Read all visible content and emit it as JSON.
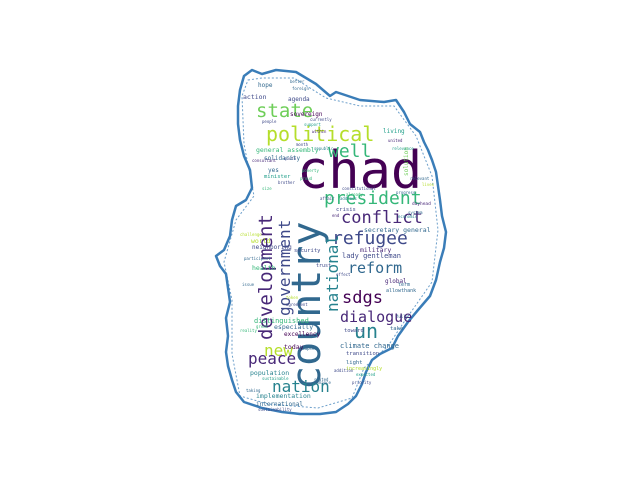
{
  "theme": {
    "background": "#ffffff",
    "outline_color": "#3a7db8",
    "palette": [
      "#440154",
      "#482878",
      "#3e4989",
      "#31688e",
      "#26828e",
      "#1f9e89",
      "#35b779",
      "#6ece58",
      "#b5de2b",
      "#fde725"
    ]
  },
  "wordcloud": {
    "shape": "country-silhouette",
    "words": [
      {
        "text": "chad",
        "weight": 1.0,
        "color": "#440154",
        "orient": "h"
      },
      {
        "text": "country",
        "weight": 0.78,
        "color": "#31688e",
        "orient": "v"
      },
      {
        "text": "political",
        "weight": 0.38,
        "color": "#b5de2b",
        "orient": "h"
      },
      {
        "text": "state",
        "weight": 0.34,
        "color": "#6ece58",
        "orient": "h"
      },
      {
        "text": "president",
        "weight": 0.3,
        "color": "#35b779",
        "orient": "h"
      },
      {
        "text": "well",
        "weight": 0.3,
        "color": "#35b779",
        "orient": "h"
      },
      {
        "text": "refugee",
        "weight": 0.3,
        "color": "#3e4989",
        "orient": "h"
      },
      {
        "text": "conflict",
        "weight": 0.28,
        "color": "#482878",
        "orient": "h"
      },
      {
        "text": "development",
        "weight": 0.3,
        "color": "#482878",
        "orient": "v"
      },
      {
        "text": "government",
        "weight": 0.26,
        "color": "#3e4989",
        "orient": "v"
      },
      {
        "text": "national",
        "weight": 0.26,
        "color": "#26828e",
        "orient": "v"
      },
      {
        "text": "sdgs",
        "weight": 0.26,
        "color": "#440154",
        "orient": "h"
      },
      {
        "text": "reform",
        "weight": 0.24,
        "color": "#31688e",
        "orient": "h"
      },
      {
        "text": "dialogue",
        "weight": 0.24,
        "color": "#482878",
        "orient": "h"
      },
      {
        "text": "un",
        "weight": 0.32,
        "color": "#26828e",
        "orient": "h"
      },
      {
        "text": "new",
        "weight": 0.28,
        "color": "#b5de2b",
        "orient": "h"
      },
      {
        "text": "peace",
        "weight": 0.28,
        "color": "#482878",
        "orient": "h"
      },
      {
        "text": "nation",
        "weight": 0.28,
        "color": "#26828e",
        "orient": "h"
      },
      {
        "text": "general assembly",
        "weight": 0.1,
        "color": "#35b779",
        "orient": "h"
      },
      {
        "text": "solidarity",
        "weight": 0.09,
        "color": "#31688e",
        "orient": "h"
      },
      {
        "text": "lady gentleman",
        "weight": 0.1,
        "color": "#3e4989",
        "orient": "h"
      },
      {
        "text": "secretary general",
        "weight": 0.1,
        "color": "#31688e",
        "orient": "h"
      },
      {
        "text": "military",
        "weight": 0.1,
        "color": "#482878",
        "orient": "h"
      },
      {
        "text": "climate change",
        "weight": 0.1,
        "color": "#31688e",
        "orient": "h"
      },
      {
        "text": "distinguished",
        "weight": 0.1,
        "color": "#35b779",
        "orient": "h"
      },
      {
        "text": "especially",
        "weight": 0.09,
        "color": "#31688e",
        "orient": "h"
      },
      {
        "text": "excellency",
        "weight": 0.09,
        "color": "#440154",
        "orient": "h"
      },
      {
        "text": "population",
        "weight": 0.1,
        "color": "#26828e",
        "orient": "h"
      },
      {
        "text": "implementation",
        "weight": 0.1,
        "color": "#26828e",
        "orient": "h"
      },
      {
        "text": "international",
        "weight": 0.09,
        "color": "#31688e",
        "orient": "h"
      },
      {
        "text": "sovereign",
        "weight": 0.09,
        "color": "#440154",
        "orient": "h"
      },
      {
        "text": "agenda",
        "weight": 0.08,
        "color": "#3e4989",
        "orient": "h"
      },
      {
        "text": "action",
        "weight": 0.09,
        "color": "#3e4989",
        "orient": "h"
      },
      {
        "text": "hope",
        "weight": 0.08,
        "color": "#31688e",
        "orient": "h"
      },
      {
        "text": "living",
        "weight": 0.09,
        "color": "#1f9e89",
        "orient": "h"
      },
      {
        "text": "world",
        "weight": 0.09,
        "color": "#b5de2b",
        "orient": "h"
      },
      {
        "text": "health",
        "weight": 0.09,
        "color": "#35b779",
        "orient": "h"
      },
      {
        "text": "neighboring",
        "weight": 0.09,
        "color": "#3e4989",
        "orient": "h"
      },
      {
        "text": "today",
        "weight": 0.1,
        "color": "#440154",
        "orient": "h"
      },
      {
        "text": "toward",
        "weight": 0.08,
        "color": "#3e4989",
        "orient": "h"
      },
      {
        "text": "global",
        "weight": 0.09,
        "color": "#482878",
        "orient": "h"
      },
      {
        "text": "transition",
        "weight": 0.08,
        "color": "#3e4989",
        "orient": "h"
      },
      {
        "text": "light",
        "weight": 0.08,
        "color": "#31688e",
        "orient": "h"
      },
      {
        "text": "crisis",
        "weight": 0.08,
        "color": "#3e4989",
        "orient": "h"
      },
      {
        "text": "security",
        "weight": 0.08,
        "color": "#3e4989",
        "orient": "h"
      },
      {
        "text": "solution",
        "weight": 0.08,
        "color": "#6ece58",
        "orient": "v"
      },
      {
        "text": "yes",
        "weight": 0.08,
        "color": "#31688e",
        "orient": "h"
      },
      {
        "text": "minister",
        "weight": 0.08,
        "color": "#1f9e89",
        "orient": "h"
      },
      {
        "text": "take",
        "weight": 0.07,
        "color": "#31688e",
        "orient": "h"
      },
      {
        "text": "term",
        "weight": 0.07,
        "color": "#31688e",
        "orient": "h"
      },
      {
        "text": "trust",
        "weight": 0.07,
        "color": "#3e4989",
        "orient": "h"
      },
      {
        "text": "allowthank",
        "weight": 0.07,
        "color": "#31688e",
        "orient": "h"
      },
      {
        "text": "increasingly",
        "weight": 0.07,
        "color": "#b5de2b",
        "orient": "h"
      },
      {
        "text": "great",
        "weight": 0.06,
        "color": "#35b779",
        "orient": "h"
      },
      {
        "text": "people",
        "weight": 0.06,
        "color": "#3e4989",
        "orient": "h"
      },
      {
        "text": "support",
        "weight": 0.06,
        "color": "#1f9e89",
        "orient": "h"
      },
      {
        "text": "poverty",
        "weight": 0.06,
        "color": "#35b779",
        "orient": "h"
      },
      {
        "text": "progress",
        "weight": 0.06,
        "color": "#31688e",
        "orient": "h"
      },
      {
        "text": "relevance",
        "weight": 0.06,
        "color": "#1f9e89",
        "orient": "h"
      },
      {
        "text": "currently",
        "weight": 0.06,
        "color": "#3e4989",
        "orient": "h"
      },
      {
        "text": "united",
        "weight": 0.06,
        "color": "#482878",
        "orient": "h"
      },
      {
        "text": "relevant",
        "weight": 0.06,
        "color": "#31688e",
        "orient": "h"
      },
      {
        "text": "address",
        "weight": 0.06,
        "color": "#26828e",
        "orient": "h"
      },
      {
        "text": "consultant",
        "weight": 0.06,
        "color": "#482878",
        "orient": "h"
      },
      {
        "text": "brother",
        "weight": 0.06,
        "color": "#3e4989",
        "orient": "h"
      },
      {
        "text": "size",
        "weight": 0.06,
        "color": "#35b779",
        "orient": "h"
      },
      {
        "text": "affair",
        "weight": 0.06,
        "color": "#3e4989",
        "orient": "h"
      },
      {
        "text": "economic",
        "weight": 0.06,
        "color": "#26828e",
        "orient": "h"
      },
      {
        "text": "constitutional",
        "weight": 0.06,
        "color": "#3e4989",
        "orient": "h"
      },
      {
        "text": "already",
        "weight": 0.06,
        "color": "#35b779",
        "orient": "h"
      },
      {
        "text": "lives",
        "weight": 0.06,
        "color": "#b5de2b",
        "orient": "h"
      },
      {
        "text": "system",
        "weight": 0.06,
        "color": "#31688e",
        "orient": "h"
      },
      {
        "text": "day",
        "weight": 0.06,
        "color": "#482878",
        "orient": "h"
      },
      {
        "text": "head",
        "weight": 0.06,
        "color": "#482878",
        "orient": "h"
      },
      {
        "text": "end",
        "weight": 0.06,
        "color": "#482878",
        "orient": "h"
      },
      {
        "text": "effect",
        "weight": 0.06,
        "color": "#3e4989",
        "orient": "h"
      },
      {
        "text": "challenge",
        "weight": 0.06,
        "color": "#b5de2b",
        "orient": "h"
      },
      {
        "text": "participant",
        "weight": 0.06,
        "color": "#31688e",
        "orient": "h"
      },
      {
        "text": "issue",
        "weight": 0.06,
        "color": "#31688e",
        "orient": "h"
      },
      {
        "text": "token",
        "weight": 0.06,
        "color": "#b5de2b",
        "orient": "h"
      },
      {
        "text": "agreement",
        "weight": 0.06,
        "color": "#3e4989",
        "orient": "h"
      },
      {
        "text": "complex",
        "weight": 0.06,
        "color": "#31688e",
        "orient": "h"
      },
      {
        "text": "reality",
        "weight": 0.06,
        "color": "#35b779",
        "orient": "h"
      },
      {
        "text": "fully",
        "weight": 0.06,
        "color": "#31688e",
        "orient": "h"
      },
      {
        "text": "addition",
        "weight": 0.06,
        "color": "#3e4989",
        "orient": "h"
      },
      {
        "text": "expected",
        "weight": 0.06,
        "color": "#1f9e89",
        "orient": "h"
      },
      {
        "text": "enhance",
        "weight": 0.06,
        "color": "#31688e",
        "orient": "h"
      },
      {
        "text": "priority",
        "weight": 0.06,
        "color": "#3e4989",
        "orient": "h"
      },
      {
        "text": "taking",
        "weight": 0.06,
        "color": "#31688e",
        "orient": "h"
      },
      {
        "text": "sustainable",
        "weight": 0.06,
        "color": "#1f9e89",
        "orient": "h"
      },
      {
        "text": "sustainability",
        "weight": 0.06,
        "color": "#3e4989",
        "orient": "h"
      },
      {
        "text": "stated",
        "weight": 0.06,
        "color": "#31688e",
        "orient": "h"
      },
      {
        "text": "within",
        "weight": 0.06,
        "color": "#482878",
        "orient": "h"
      },
      {
        "text": "foreign",
        "weight": 0.06,
        "color": "#31688e",
        "orient": "h"
      },
      {
        "text": "better",
        "weight": 0.06,
        "color": "#31688e",
        "orient": "h"
      },
      {
        "text": "republic",
        "weight": 0.06,
        "color": "#26828e",
        "orient": "h"
      },
      {
        "text": "month",
        "weight": 0.06,
        "color": "#3e4989",
        "orient": "h"
      },
      {
        "text": "proud",
        "weight": 0.06,
        "color": "#35b779",
        "orient": "h"
      },
      {
        "text": "quote",
        "weight": 0.06,
        "color": "#3e4989",
        "orient": "h"
      }
    ]
  }
}
